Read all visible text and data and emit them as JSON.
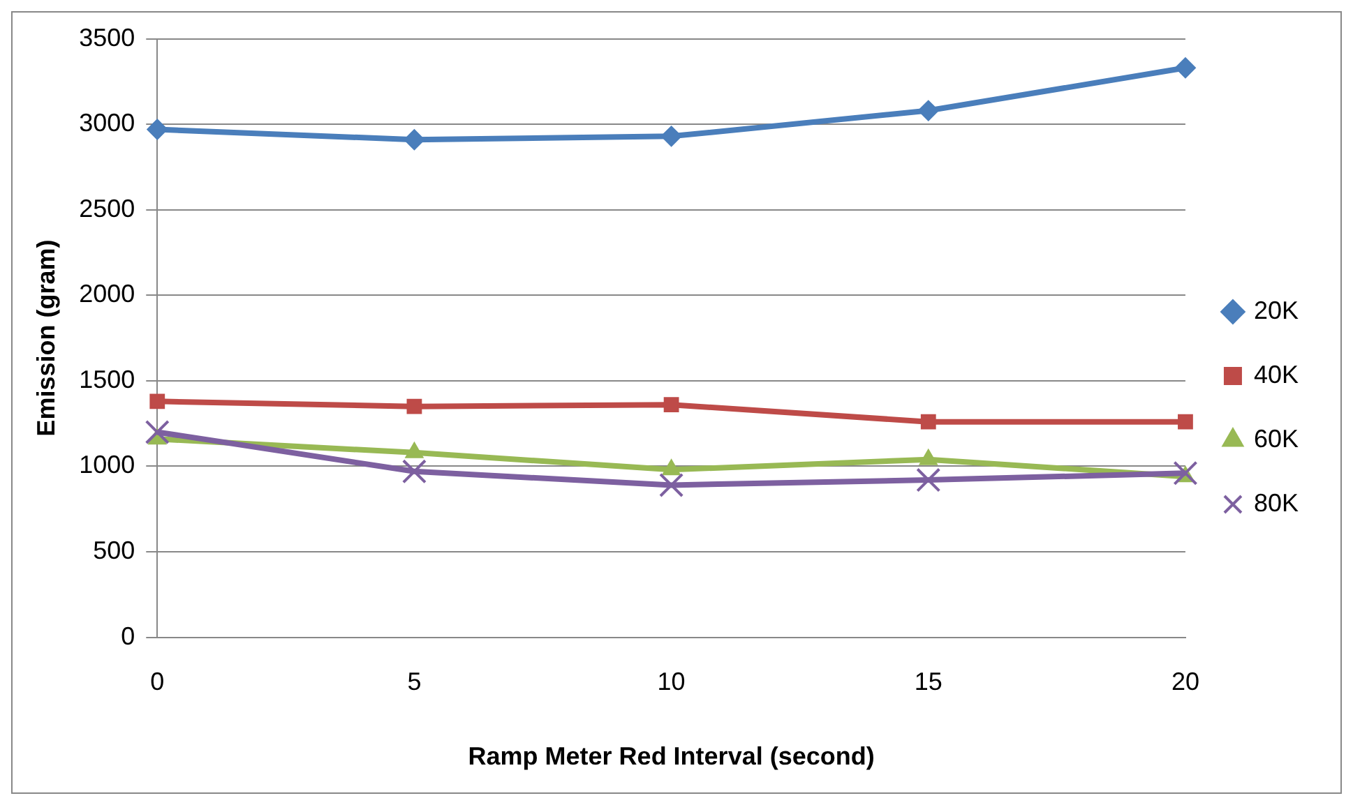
{
  "chart_data": {
    "type": "line",
    "xlabel": "Ramp Meter Red Interval (second)",
    "ylabel": "Emission (gram)",
    "categories": [
      "0",
      "5",
      "10",
      "15",
      "20"
    ],
    "ylim": [
      0,
      3500
    ],
    "yticks": [
      0,
      500,
      1000,
      1500,
      2000,
      2500,
      3000,
      3500
    ],
    "grid": "y",
    "legend": "right",
    "series": [
      {
        "name": "20K",
        "color": "#4a7ebb",
        "marker": "diamond",
        "values": [
          2970,
          2910,
          2930,
          3080,
          3330
        ]
      },
      {
        "name": "40K",
        "color": "#be4b48",
        "marker": "square",
        "values": [
          1380,
          1350,
          1360,
          1260,
          1260
        ]
      },
      {
        "name": "60K",
        "color": "#98b954",
        "marker": "triangle",
        "values": [
          1160,
          1080,
          980,
          1040,
          940
        ]
      },
      {
        "name": "80K",
        "color": "#7d60a0",
        "marker": "cross",
        "values": [
          1200,
          970,
          890,
          920,
          960
        ]
      }
    ]
  }
}
